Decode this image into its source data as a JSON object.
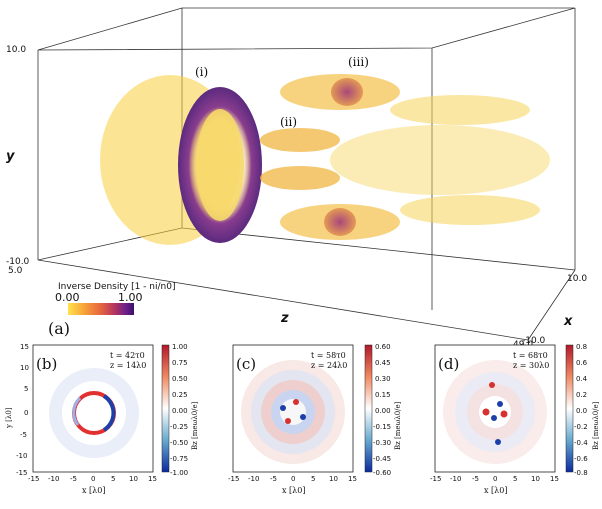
{
  "top_panel": {
    "label": "(a)",
    "annotations": [
      "(i)",
      "(ii)",
      "(iii)"
    ],
    "axes": {
      "x_label": "x",
      "y_label": "y",
      "z_label": "z",
      "y_top": "10.0",
      "y_bottom": "-10.0",
      "depth_left": "5.0",
      "x_right_top": "10.0",
      "x_right_bottom": "-10.0",
      "z_end": "49.0"
    },
    "colorbar": {
      "title": "Inverse Density [1 - ni/n0]",
      "min": "0.00",
      "max": "1.00",
      "colors": [
        "#ffe34a",
        "#f7a13a",
        "#e5653f",
        "#b5365e",
        "#6c1f8a",
        "#3b1166"
      ]
    }
  },
  "bottom_panels": [
    {
      "label": "(b)",
      "time": "t = 42τ0",
      "z": "z = 14λ0",
      "xlabel": "x [λ0]",
      "ylabel": "y [λ0]",
      "xticks": [
        "-15",
        "-10",
        "-5",
        "0",
        "5",
        "10",
        "15"
      ],
      "yticks": [
        "15",
        "10",
        "5",
        "0",
        "-5",
        "-10",
        "-15"
      ],
      "cbar_label": "Bz [meωλ0/e]",
      "cbar_ticks": [
        "1.00",
        "0.75",
        "0.50",
        "0.25",
        "0.00",
        "-0.25",
        "-0.50",
        "-0.75",
        "-1.00"
      ]
    },
    {
      "label": "(c)",
      "time": "t = 58τ0",
      "z": "z = 24λ0",
      "xlabel": "x [λ0]",
      "xticks": [
        "-15",
        "-10",
        "-5",
        "0",
        "5",
        "10",
        "15"
      ],
      "cbar_label": "Bz [meωλ0/e]",
      "cbar_ticks": [
        "0.60",
        "0.45",
        "0.30",
        "0.15",
        "0.00",
        "-0.15",
        "-0.30",
        "-0.45",
        "-0.60"
      ]
    },
    {
      "label": "(d)",
      "time": "t = 68τ0",
      "z": "z = 30λ0",
      "xlabel": "x [λ0]",
      "xticks": [
        "-15",
        "-10",
        "-5",
        "0",
        "5",
        "10",
        "15"
      ],
      "cbar_label": "Bz [meωλ0/e]",
      "cbar_ticks": [
        "0.8",
        "0.6",
        "0.4",
        "0.2",
        "0.0",
        "-0.2",
        "-0.4",
        "-0.6",
        "-0.8"
      ]
    }
  ]
}
